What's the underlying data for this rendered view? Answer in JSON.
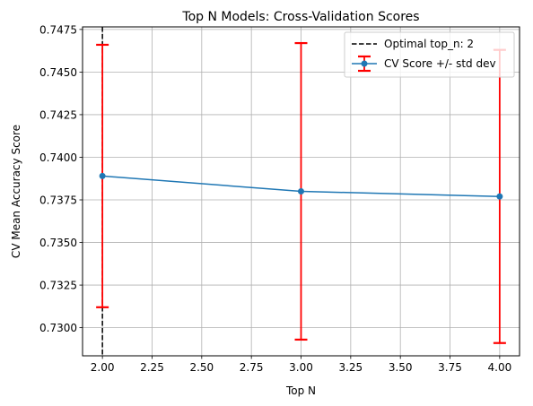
{
  "chart_data": {
    "type": "line",
    "title": "Top N Models: Cross-Validation Scores",
    "xlabel": "Top N",
    "ylabel": "CV Mean Accuracy Score",
    "xlim": [
      1.9,
      4.1
    ],
    "ylim": [
      0.72835,
      0.74765
    ],
    "x_ticks": [
      2.0,
      2.25,
      2.5,
      2.75,
      3.0,
      3.25,
      3.5,
      3.75,
      4.0
    ],
    "x_tick_labels": [
      "2.00",
      "2.25",
      "2.50",
      "2.75",
      "3.00",
      "3.25",
      "3.50",
      "3.75",
      "4.00"
    ],
    "y_ticks": [
      0.73,
      0.7325,
      0.735,
      0.7375,
      0.74,
      0.7425,
      0.745,
      0.7475
    ],
    "y_tick_labels": [
      "0.7300",
      "0.7325",
      "0.7350",
      "0.7375",
      "0.7400",
      "0.7425",
      "0.7450",
      "0.7475"
    ],
    "grid": true,
    "legend_position": "top-right",
    "series": [
      {
        "name": "CV Score +/- std dev",
        "x": [
          2,
          3,
          4
        ],
        "y": [
          0.7389,
          0.738,
          0.7377
        ],
        "err": [
          0.0077,
          0.0087,
          0.0086
        ],
        "color": "#1f77b4",
        "error_color": "#ff0000"
      }
    ],
    "vline": {
      "x": 2,
      "name": "Optimal top_n: 2",
      "color": "#000000",
      "style": "dashed"
    }
  }
}
